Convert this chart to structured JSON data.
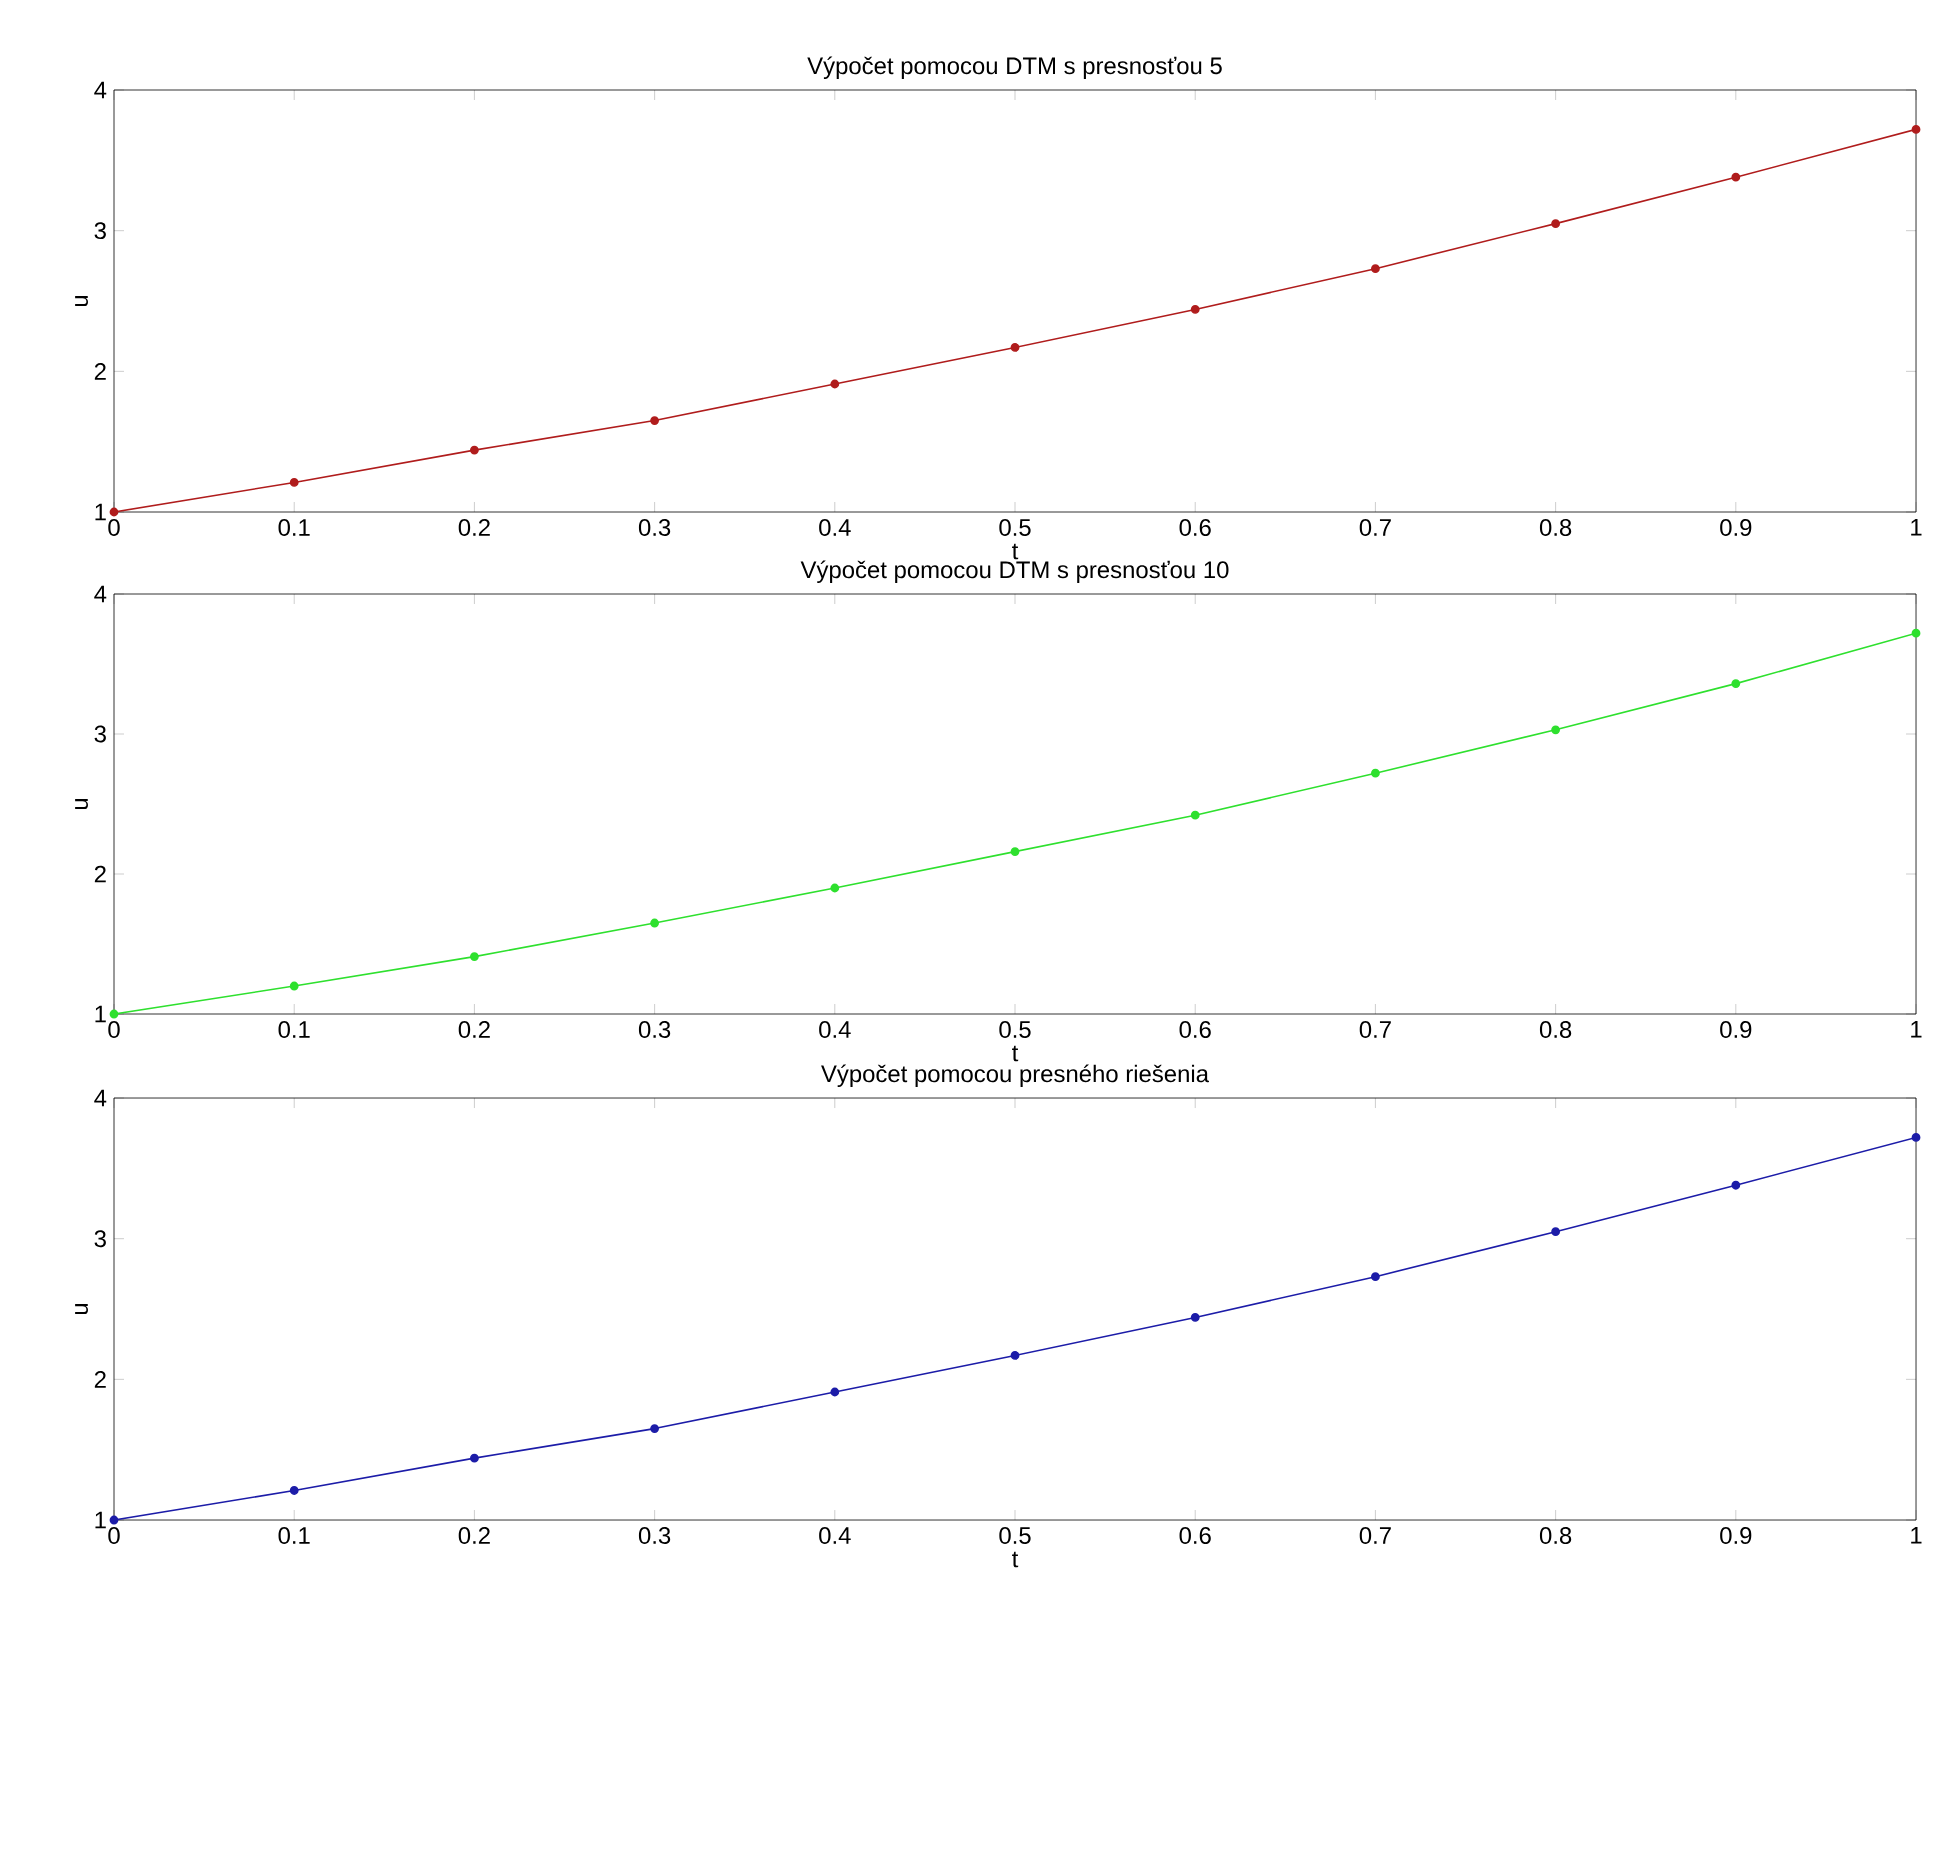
{
  "chart_data": [
    {
      "type": "line",
      "title": "Výpočet pomocou DTM s presnosťou 5",
      "xlabel": "t",
      "ylabel": "u",
      "x": [
        0,
        0.1,
        0.2,
        0.3,
        0.4,
        0.5,
        0.6,
        0.7,
        0.8,
        0.9,
        1
      ],
      "marker": "circle",
      "line_style": "solid",
      "series": [
        {
          "color": "#b01c1c",
          "values": [
            1,
            1.21,
            1.44,
            1.65,
            1.91,
            2.17,
            2.44,
            2.73,
            3.05,
            3.38,
            3.72
          ]
        }
      ],
      "xlim": [
        0,
        1
      ],
      "ylim": [
        1,
        4
      ],
      "xticks": [
        0,
        0.1,
        0.2,
        0.3,
        0.4,
        0.5,
        0.6,
        0.7,
        0.8,
        0.9,
        1
      ],
      "yticks": [
        1,
        2,
        3,
        4
      ]
    },
    {
      "type": "line",
      "title": "Výpočet pomocou DTM s presnosťou 10",
      "xlabel": "t",
      "ylabel": "u",
      "x": [
        0,
        0.1,
        0.2,
        0.3,
        0.4,
        0.5,
        0.6,
        0.7,
        0.8,
        0.9,
        1
      ],
      "marker": "circle",
      "line_style": "solid",
      "series": [
        {
          "color": "#2ee02e",
          "values": [
            1,
            1.2,
            1.41,
            1.65,
            1.9,
            2.16,
            2.42,
            2.72,
            3.03,
            3.36,
            3.72
          ]
        }
      ],
      "xlim": [
        0,
        1
      ],
      "ylim": [
        1,
        4
      ],
      "xticks": [
        0,
        0.1,
        0.2,
        0.3,
        0.4,
        0.5,
        0.6,
        0.7,
        0.8,
        0.9,
        1
      ],
      "yticks": [
        1,
        2,
        3,
        4
      ]
    },
    {
      "type": "line",
      "title": "Výpočet pomocou presného riešenia",
      "xlabel": "t",
      "ylabel": "u",
      "x": [
        0,
        0.1,
        0.2,
        0.3,
        0.4,
        0.5,
        0.6,
        0.7,
        0.8,
        0.9,
        1
      ],
      "marker": "circle",
      "line_style": "solid",
      "series": [
        {
          "color": "#1c1ca8",
          "values": [
            1,
            1.21,
            1.44,
            1.65,
            1.91,
            2.17,
            2.44,
            2.73,
            3.05,
            3.38,
            3.72
          ]
        }
      ],
      "xlim": [
        0,
        1
      ],
      "ylim": [
        1,
        4
      ],
      "xticks": [
        0,
        0.1,
        0.2,
        0.3,
        0.4,
        0.5,
        0.6,
        0.7,
        0.8,
        0.9,
        1
      ],
      "yticks": [
        1,
        2,
        3,
        4
      ]
    }
  ]
}
